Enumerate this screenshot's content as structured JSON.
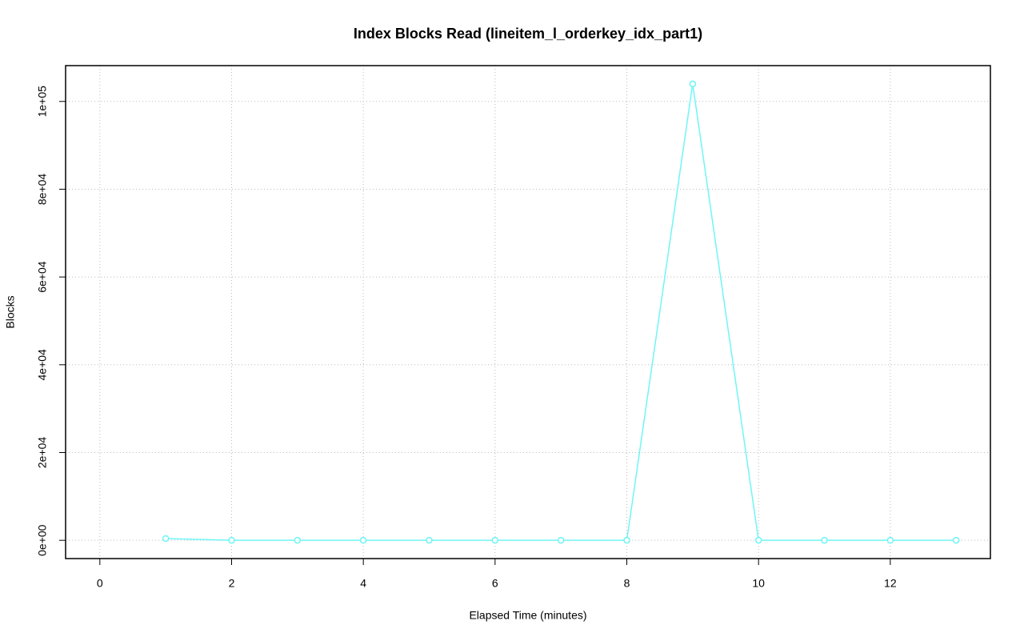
{
  "chart_data": {
    "type": "line",
    "title": "Index Blocks Read (lineitem_l_orderkey_idx_part1)",
    "xlabel": "Elapsed Time (minutes)",
    "ylabel": "Blocks",
    "x": [
      1,
      2,
      3,
      4,
      5,
      6,
      7,
      8,
      9,
      10,
      11,
      12,
      13
    ],
    "values": [
      400,
      0,
      0,
      0,
      0,
      0,
      0,
      0,
      104000,
      0,
      0,
      0,
      0
    ],
    "color": "#70f5f5",
    "xlim": [
      -0.52,
      13.52
    ],
    "xticks": [
      0,
      2,
      4,
      6,
      8,
      10,
      12
    ],
    "ylim": [
      -4160,
      108160
    ],
    "yticks": [
      {
        "value": 0,
        "label": "0e+00"
      },
      {
        "value": 20000,
        "label": "2e+04"
      },
      {
        "value": 40000,
        "label": "4e+04"
      },
      {
        "value": 60000,
        "label": "6e+04"
      },
      {
        "value": 80000,
        "label": "8e+04"
      },
      {
        "value": 100000,
        "label": "1e+05"
      }
    ],
    "grid": true
  }
}
